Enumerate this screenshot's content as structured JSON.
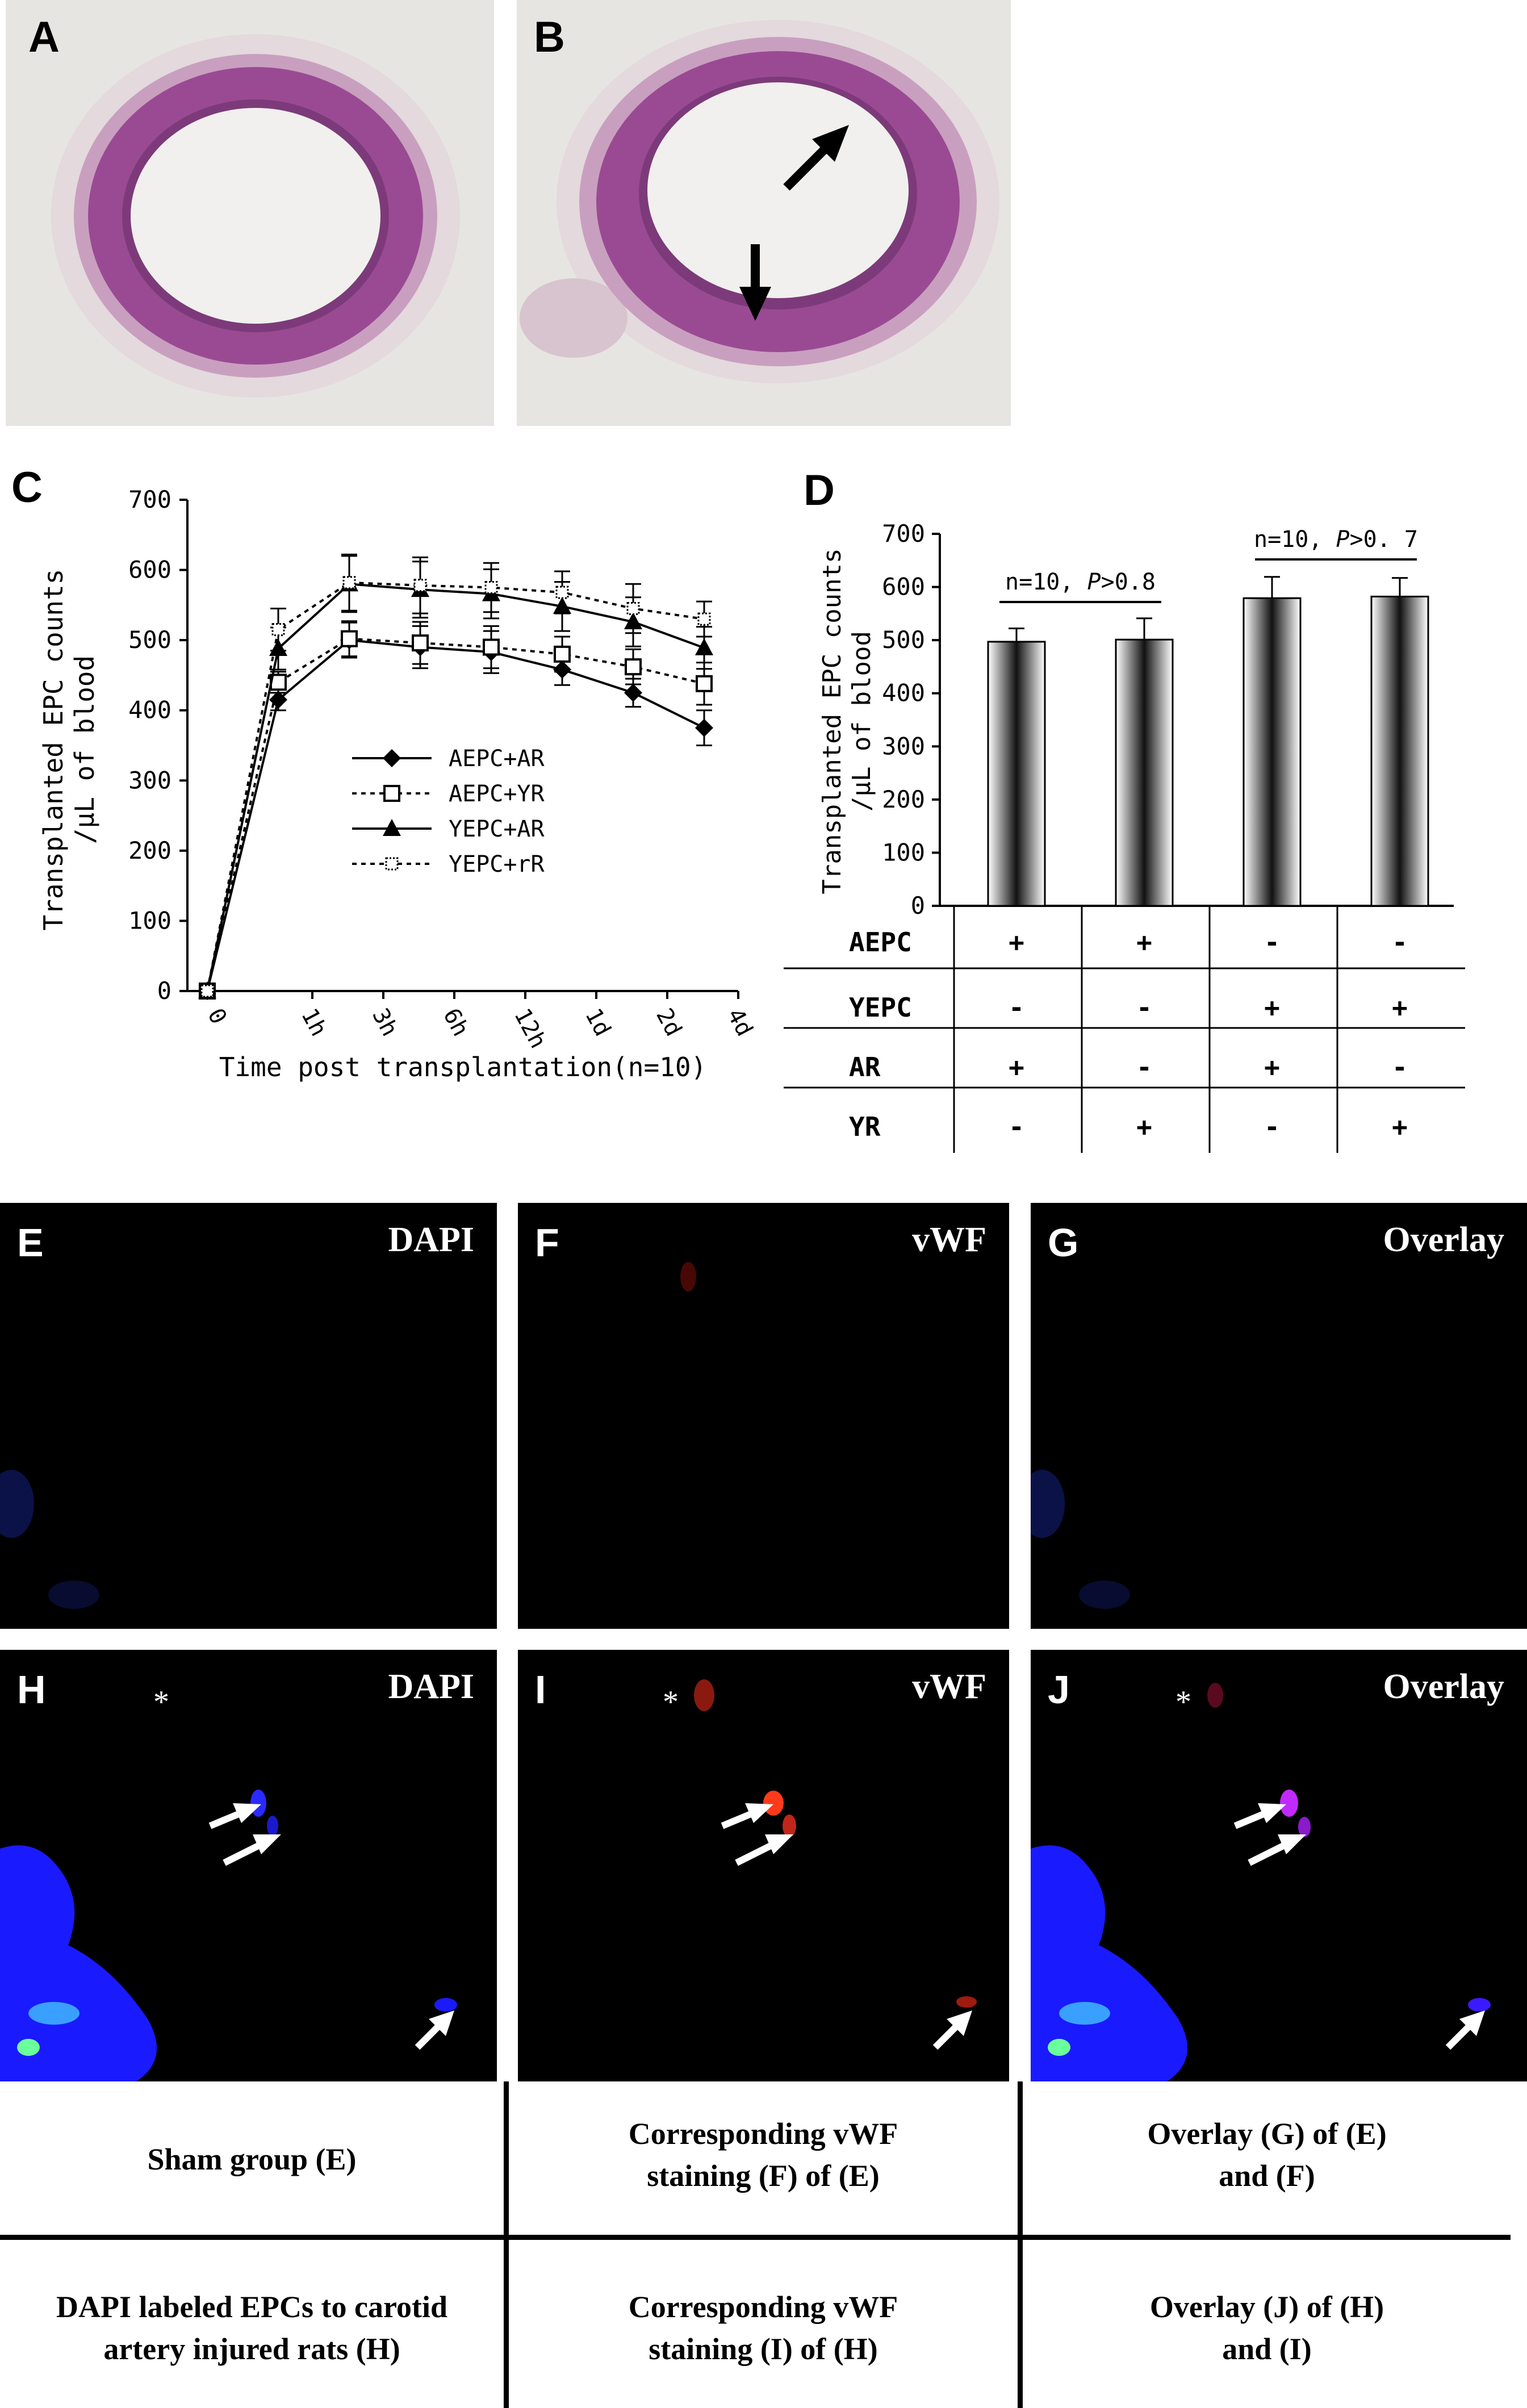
{
  "panels": {
    "A": {
      "letter": "A"
    },
    "B": {
      "letter": "B"
    },
    "C": {
      "letter": "C"
    },
    "D": {
      "letter": "D"
    }
  },
  "chart_data": [
    {
      "panel": "C",
      "type": "line",
      "categories": [
        "0",
        "1h",
        "3h",
        "6h",
        "12h",
        "1d",
        "2d",
        "4d"
      ],
      "series": [
        {
          "name": "AEPC+AR",
          "marker": "filled-diamond",
          "dash": "solid",
          "values": [
            0,
            415,
            500,
            490,
            483,
            458,
            425,
            375
          ],
          "errors": [
            0,
            15,
            25,
            30,
            30,
            22,
            20,
            25
          ]
        },
        {
          "name": "AEPC+YR",
          "marker": "open-square",
          "dash": "dotted",
          "values": [
            0,
            440,
            502,
            496,
            490,
            480,
            462,
            438
          ],
          "errors": [
            0,
            15,
            25,
            30,
            30,
            25,
            25,
            30
          ]
        },
        {
          "name": "YEPC+AR",
          "marker": "filled-triangle",
          "dash": "solid",
          "values": [
            0,
            488,
            580,
            572,
            566,
            548,
            526,
            489
          ],
          "errors": [
            0,
            30,
            40,
            40,
            35,
            35,
            35,
            30
          ]
        },
        {
          "name": "YEPC+rR",
          "marker": "dotted-square",
          "dash": "dotted",
          "values": [
            0,
            515,
            582,
            578,
            575,
            568,
            545,
            530
          ],
          "errors": [
            0,
            30,
            40,
            40,
            35,
            30,
            35,
            25
          ]
        }
      ],
      "ylabel_line1": "Transplanted EPC counts",
      "ylabel_line2": "/μL of blood",
      "xlabel": "Time post transplantation(n=10)",
      "yticks": [
        0,
        100,
        200,
        300,
        400,
        500,
        600,
        700
      ],
      "ylim": [
        0,
        700
      ],
      "grid": false,
      "legend_position": "center"
    },
    {
      "panel": "D",
      "type": "bar",
      "categories": [
        "AEPC+AR",
        "AEPC+YR",
        "YEPC+AR",
        "YEPC+YR"
      ],
      "values": [
        497,
        501,
        579,
        582
      ],
      "errors": [
        25,
        40,
        40,
        35
      ],
      "ylabel_line1": "Transplanted EPC counts",
      "ylabel_line2": "/μL of blood",
      "yticks": [
        0,
        100,
        200,
        300,
        400,
        500,
        600,
        700
      ],
      "ylim": [
        0,
        700
      ],
      "annotations": [
        {
          "prefix": "n=10, ",
          "p": "P",
          "suffix": ">0.8",
          "span": [
            0,
            1
          ]
        },
        {
          "prefix": "n=10, ",
          "p": "P",
          "suffix": ">0. 7",
          "span": [
            2,
            3
          ]
        }
      ],
      "table": {
        "rows": [
          {
            "label": "AEPC",
            "cells": [
              "+",
              "+",
              "-",
              "-"
            ]
          },
          {
            "label": "YEPC",
            "cells": [
              "-",
              "-",
              "+",
              "+"
            ]
          },
          {
            "label": "AR",
            "cells": [
              "+",
              "-",
              "+",
              "-"
            ]
          },
          {
            "label": "YR",
            "cells": [
              "-",
              "+",
              "-",
              "+"
            ]
          }
        ]
      }
    }
  ],
  "micro": {
    "E": {
      "letter": "E",
      "stain": "DAPI"
    },
    "F": {
      "letter": "F",
      "stain": "vWF"
    },
    "G": {
      "letter": "G",
      "stain": "Overlay"
    },
    "H": {
      "letter": "H",
      "stain": "DAPI"
    },
    "I": {
      "letter": "I",
      "stain": "vWF"
    },
    "J": {
      "letter": "J",
      "stain": "Overlay"
    },
    "asterisk": "*"
  },
  "captions": {
    "row1": [
      "Sham group (E)",
      "Corresponding vWF\nstaining (F) of (E)",
      "Overlay (G) of (E)\nand (F)"
    ],
    "row2": [
      "DAPI labeled EPCs to carotid\nartery injured rats (H)",
      "Corresponding vWF\nstaining (I) of (H)",
      "Overlay (J) of (H)\nand (I)"
    ]
  },
  "colors": {
    "dapi": "#1a1aff",
    "vwf": "#ff2a1a",
    "overlay": "#c02aff",
    "tissue": "#9a4a93"
  }
}
